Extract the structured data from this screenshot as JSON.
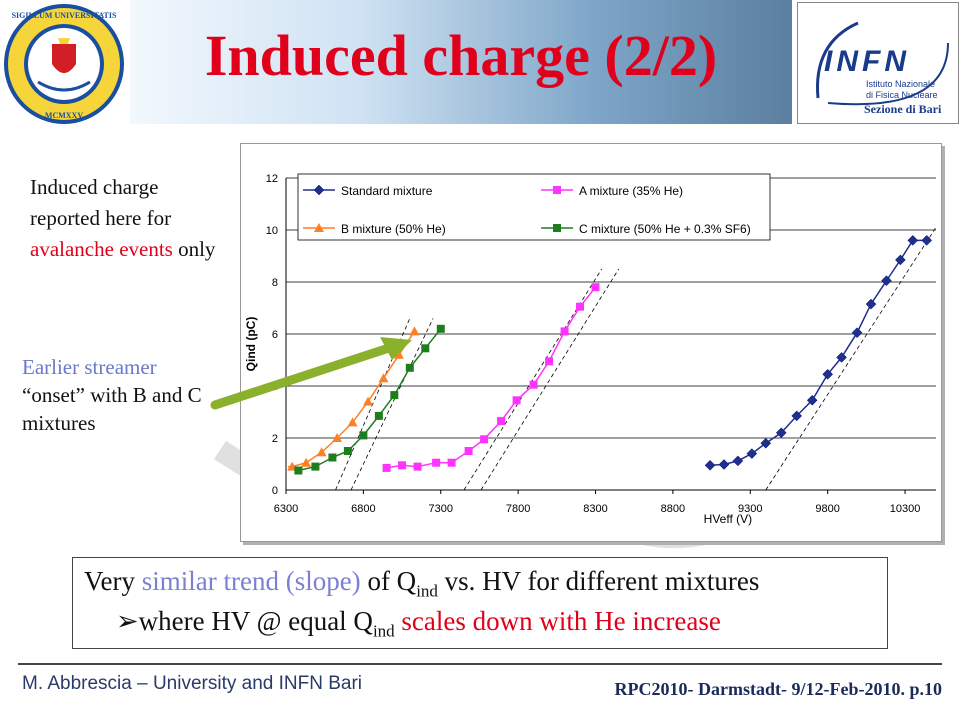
{
  "slide": {
    "title": "Induced charge (2/2)",
    "logo_left_text": "SIGILLUM UNIVERSITATIS BARENSIS · MCMXXV",
    "logo_right": {
      "brand": "INFN",
      "line1": "Istituto Nazionale",
      "line2": "di Fisica Nucleare",
      "line3": "Sezione di Bari"
    },
    "note_avalanche": {
      "pre": "Induced charge reported here for ",
      "highlight": "avalanche events",
      "post": " only"
    },
    "note_streamer": {
      "highlight": "Earlier streamer",
      "rest": "“onset” with B and C mixtures"
    },
    "summary_line1": {
      "pre": "Very ",
      "w1": "similar trend",
      "mid": " ",
      "w2": "(slope)",
      "post1": " of Q",
      "sub": "ind",
      "post2": " vs. HV for different mixtures"
    },
    "summary_line2": {
      "bullet": "➢",
      "pre": "where HV @ equal Q",
      "sub": "ind",
      "highlight": " scales down with He increase"
    },
    "footer_left": "M. Abbrescia – University and INFN Bari",
    "footer_right": "RPC2010- Darmstadt- 9/12-Feb-2010. p.10",
    "colors": {
      "title": "#e0001b",
      "accent_red": "#e0001b",
      "accent_lavender": "#7b80d2",
      "standard": "#1f2f8f",
      "mixA": "#ff33ff",
      "mixB": "#ff7f27",
      "mixC": "#1e7d1e",
      "arrow": "#8ab02c"
    }
  },
  "chart_data": {
    "type": "line",
    "xlabel": "HVeff (V)",
    "ylabel": "Qind (pC)",
    "xlim": [
      6300,
      10500
    ],
    "ylim": [
      0,
      12
    ],
    "xticks": [
      6300,
      6800,
      7300,
      7800,
      8300,
      8800,
      9300,
      9800,
      10300
    ],
    "yticks": [
      0,
      2,
      4,
      6,
      8,
      10,
      12
    ],
    "grid": "horizontal",
    "legend": "top-left inside",
    "series": [
      {
        "name": "Standard mixture",
        "marker": "diamond",
        "color": "#1f2f8f",
        "x": [
          9040,
          9130,
          9220,
          9310,
          9400,
          9500,
          9600,
          9700,
          9800,
          9890,
          9990,
          10080,
          10180,
          10270,
          10350,
          10440
        ],
        "y": [
          0.95,
          0.98,
          1.12,
          1.4,
          1.8,
          2.2,
          2.85,
          3.45,
          4.45,
          5.1,
          6.05,
          7.15,
          8.05,
          8.85,
          9.6,
          9.6
        ]
      },
      {
        "name": "A mixture (35% He)",
        "marker": "square",
        "color": "#ff33ff",
        "x": [
          6950,
          7050,
          7150,
          7270,
          7370,
          7480,
          7580,
          7690,
          7790,
          7900,
          8000,
          8100,
          8200,
          8300
        ],
        "y": [
          0.85,
          0.95,
          0.9,
          1.05,
          1.05,
          1.5,
          1.95,
          2.65,
          3.45,
          4.05,
          4.95,
          6.1,
          7.05,
          7.8
        ]
      },
      {
        "name": "B mixture (50% He)",
        "marker": "triangle",
        "color": "#ff7f27",
        "x": [
          6340,
          6430,
          6530,
          6630,
          6730,
          6830,
          6930,
          7030,
          7130
        ],
        "y": [
          0.9,
          1.05,
          1.45,
          2.0,
          2.6,
          3.4,
          4.3,
          5.2,
          6.1
        ]
      },
      {
        "name": "C mixture (50% He + 0.3% SF6)",
        "marker": "square",
        "color": "#1e7d1e",
        "x": [
          6380,
          6490,
          6600,
          6700,
          6800,
          6900,
          7000,
          7100,
          7200,
          7300
        ],
        "y": [
          0.75,
          0.9,
          1.25,
          1.5,
          2.1,
          2.85,
          3.65,
          4.7,
          5.45,
          6.2
        ]
      }
    ]
  }
}
